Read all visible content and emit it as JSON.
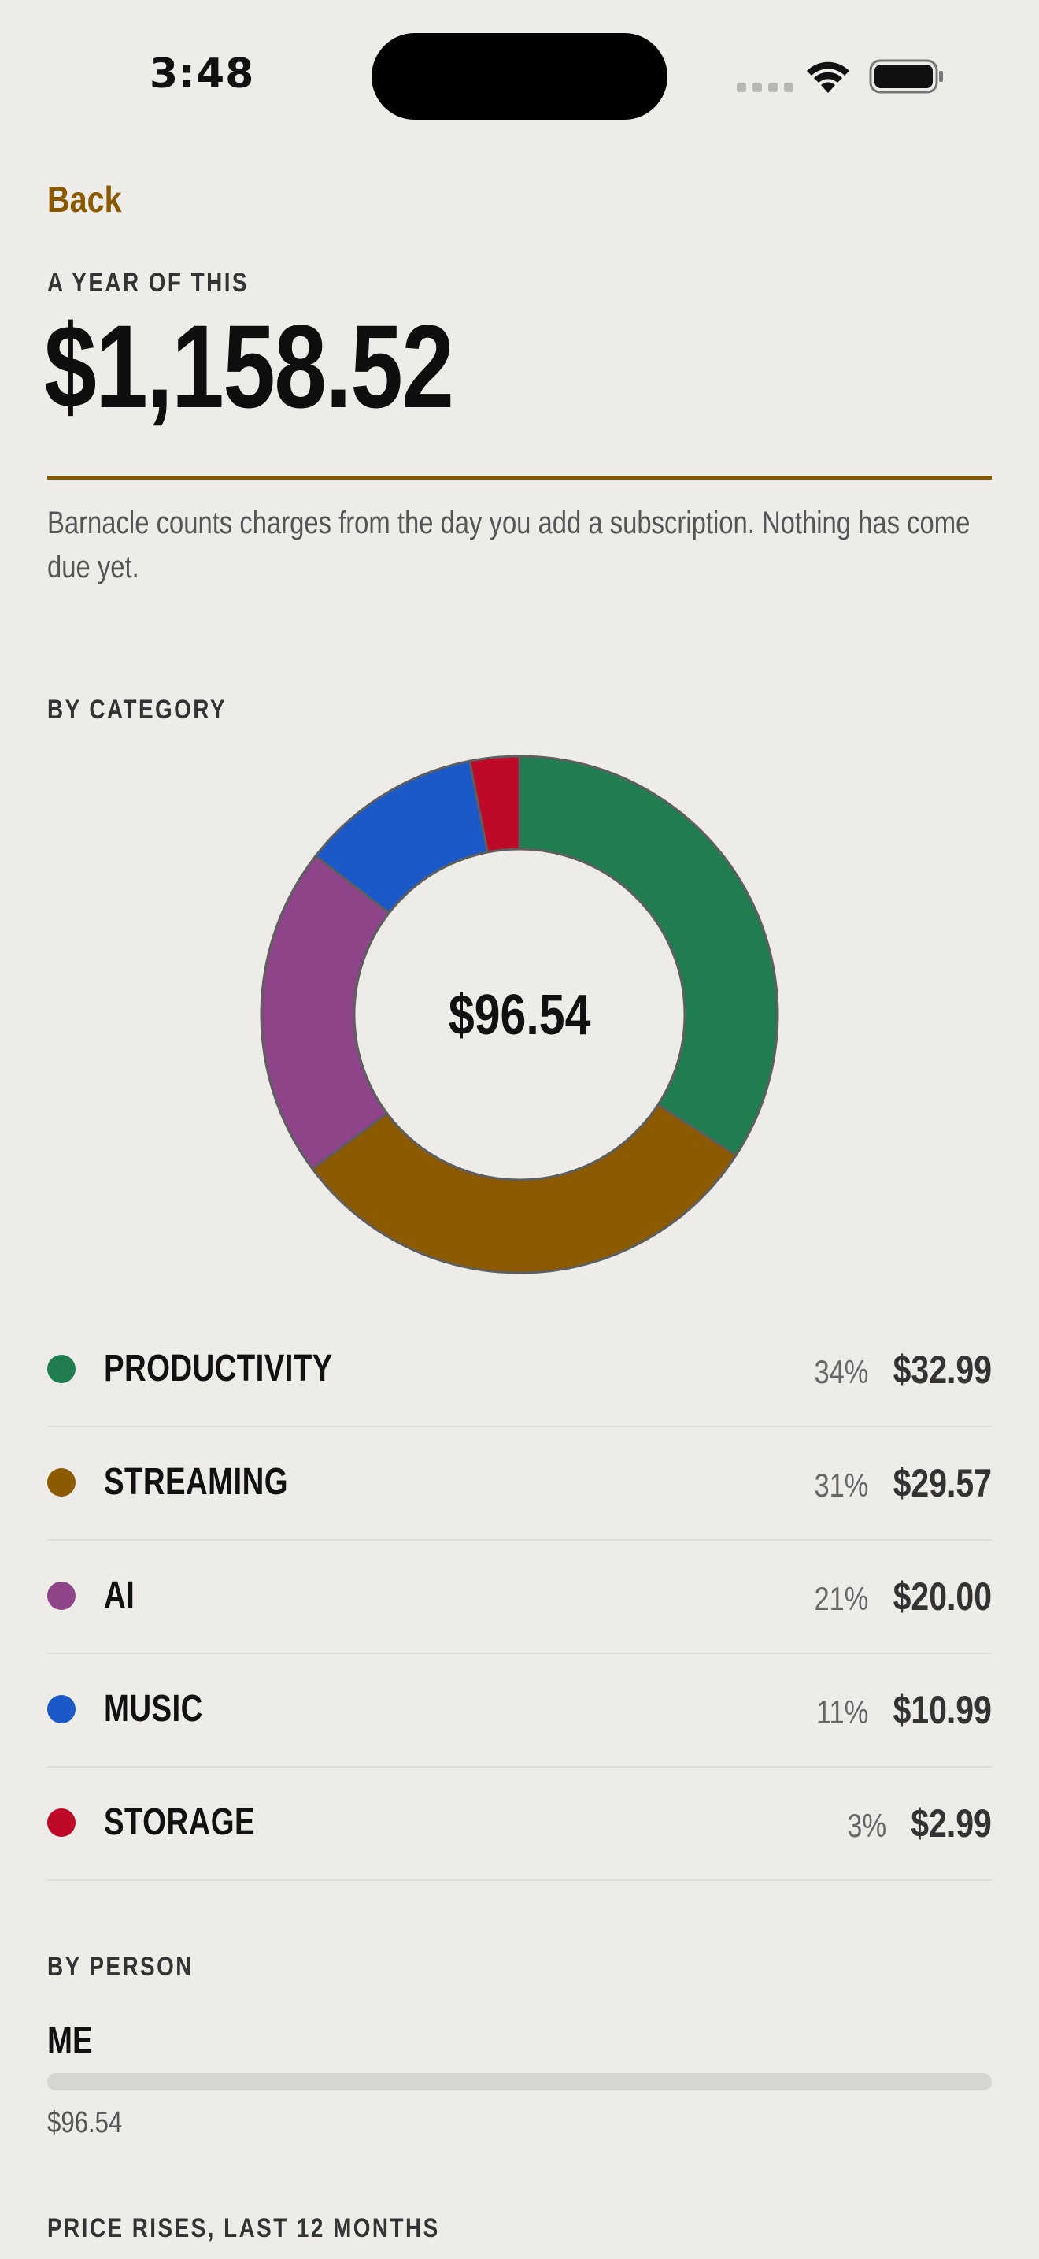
{
  "status_bar": {
    "time": "3:48"
  },
  "header": {
    "back_label": "Back",
    "year_label": "A YEAR OF THIS",
    "year_total": "$1,158.52",
    "note": "Barnacle counts charges from the day you add a subscription. Nothing has come due yet."
  },
  "by_category": {
    "label": "BY CATEGORY",
    "center_total": "$96.54",
    "items": [
      {
        "name": "PRODUCTIVITY",
        "percent": "34%",
        "amount": "$32.99",
        "color": "#207D50"
      },
      {
        "name": "STREAMING",
        "percent": "31%",
        "amount": "$29.57",
        "color": "#8C5A00"
      },
      {
        "name": "AI",
        "percent": "21%",
        "amount": "$20.00",
        "color": "#8E4489"
      },
      {
        "name": "MUSIC",
        "percent": "11%",
        "amount": "$10.99",
        "color": "#1B58C8"
      },
      {
        "name": "STORAGE",
        "percent": "3%",
        "amount": "$2.99",
        "color": "#BE0A28"
      }
    ]
  },
  "chart_data": {
    "type": "pie",
    "categories": [
      "PRODUCTIVITY",
      "STREAMING",
      "AI",
      "MUSIC",
      "STORAGE"
    ],
    "values": [
      32.99,
      29.57,
      20.0,
      10.99,
      2.99
    ],
    "colors": [
      "#207D50",
      "#8C5A00",
      "#8E4489",
      "#1B58C8",
      "#BE0A28"
    ],
    "donut": true
  },
  "by_person": {
    "label": "BY PERSON",
    "people": [
      {
        "name": "ME",
        "amount": "$96.54",
        "share": 1.0
      }
    ]
  },
  "price_rises": {
    "label": "PRICE RISES, LAST 12 MONTHS"
  }
}
